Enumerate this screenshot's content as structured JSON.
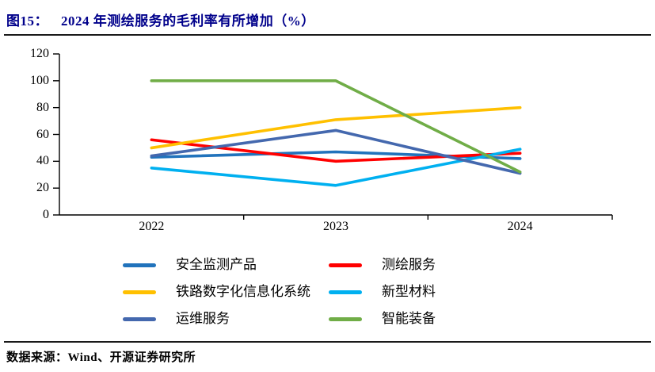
{
  "title": {
    "label": "图15：",
    "heading": "2024 年测绘服务的毛利率有所增加（%）"
  },
  "source": "数据来源：Wind、开源证券研究所",
  "chart_data": {
    "type": "line",
    "title": "2024 年测绘服务的毛利率有所增加（%）",
    "xlabel": "",
    "ylabel": "",
    "categories": [
      "2022",
      "2023",
      "2024"
    ],
    "series": [
      {
        "name": "安全监测产品",
        "color": "#2173BC",
        "values": [
          43,
          47,
          42
        ]
      },
      {
        "name": "测绘服务",
        "color": "#FF0000",
        "values": [
          56,
          40,
          46
        ]
      },
      {
        "name": "铁路数字化信息化系统",
        "color": "#FFC000",
        "values": [
          50,
          71,
          80
        ]
      },
      {
        "name": "新型材料",
        "color": "#00B0F0",
        "values": [
          35,
          22,
          49
        ]
      },
      {
        "name": "运维服务",
        "color": "#4468AE",
        "values": [
          44,
          63,
          31
        ]
      },
      {
        "name": "智能装备",
        "color": "#70AD47",
        "values": [
          100,
          100,
          32
        ]
      }
    ],
    "ylim": [
      0,
      120
    ],
    "yticks": [
      0,
      20,
      40,
      60,
      80,
      100,
      120
    ],
    "grid": false,
    "legend_position": "bottom"
  }
}
